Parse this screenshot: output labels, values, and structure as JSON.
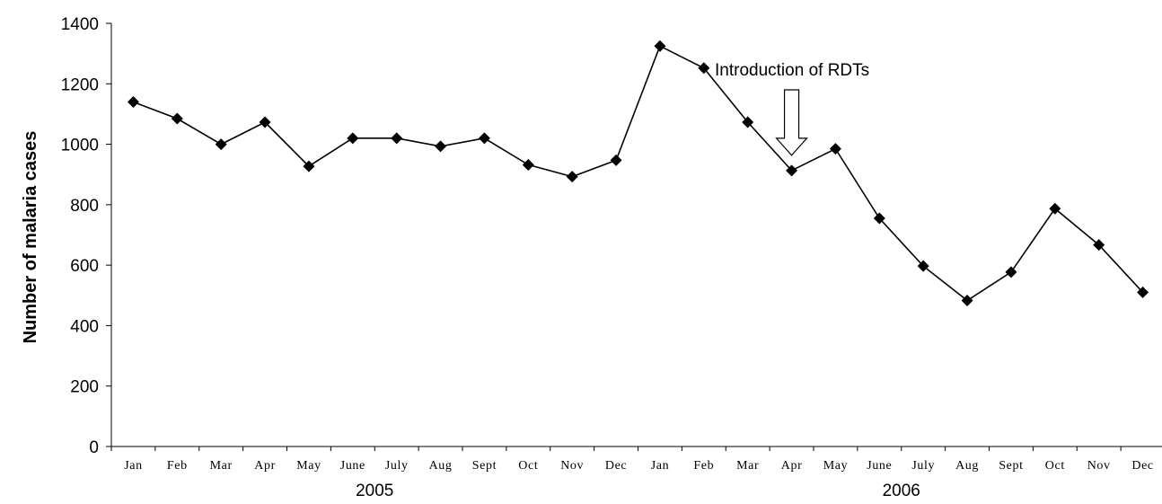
{
  "chart_data": {
    "type": "line",
    "title": "",
    "ylabel": "Number of malaria cases",
    "xlabel": "",
    "ylim": [
      0,
      1400
    ],
    "yticks": [
      0,
      200,
      400,
      600,
      800,
      1000,
      1200,
      1400
    ],
    "grid": false,
    "categories": [
      "Jan",
      "Feb",
      "Mar",
      "Apr",
      "May",
      "June",
      "July",
      "Aug",
      "Sept",
      "Oct",
      "Nov",
      "Dec",
      "Jan",
      "Feb",
      "Mar",
      "Apr",
      "May",
      "June",
      "July",
      "Aug",
      "Sept",
      "Oct",
      "Nov",
      "Dec"
    ],
    "groups": [
      {
        "label": "2005",
        "start": 0,
        "end": 11
      },
      {
        "label": "2006",
        "start": 12,
        "end": 23
      }
    ],
    "series": [
      {
        "values": [
          1140,
          1085,
          1000,
          1073,
          927,
          1020,
          1020,
          993,
          1020,
          932,
          893,
          947,
          1325,
          1252,
          1073,
          913,
          985,
          755,
          597,
          483,
          577,
          787,
          667,
          510
        ],
        "color": "#000000",
        "marker": "diamond"
      }
    ],
    "annotations": [
      {
        "text": "Introduction of RDTs",
        "at_index": 15,
        "arrow": "down"
      }
    ]
  }
}
